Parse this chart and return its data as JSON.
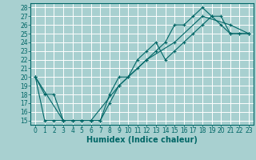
{
  "xlabel": "Humidex (Indice chaleur)",
  "bg_color": "#a8d0d0",
  "grid_color": "#ffffff",
  "line_color": "#006666",
  "xlim": [
    -0.5,
    23.5
  ],
  "ylim": [
    14.5,
    28.5
  ],
  "xticks": [
    0,
    1,
    2,
    3,
    4,
    5,
    6,
    7,
    8,
    9,
    10,
    11,
    12,
    13,
    14,
    15,
    16,
    17,
    18,
    19,
    20,
    21,
    22,
    23
  ],
  "yticks": [
    15,
    16,
    17,
    18,
    19,
    20,
    21,
    22,
    23,
    24,
    25,
    26,
    27,
    28
  ],
  "line1_x": [
    0,
    1,
    2,
    3,
    4,
    5,
    6,
    7,
    8,
    9,
    10,
    11,
    12,
    13,
    14,
    15,
    16,
    17,
    18,
    19,
    20,
    21,
    22,
    23
  ],
  "line1_y": [
    20,
    18,
    18,
    15,
    15,
    15,
    15,
    15,
    18,
    20,
    20,
    21,
    22,
    23,
    24,
    26,
    26,
    27,
    28,
    27,
    26,
    25,
    25,
    25
  ],
  "line2_x": [
    0,
    1,
    2,
    3,
    4,
    5,
    6,
    7,
    8,
    9,
    10,
    11,
    12,
    13,
    14,
    15,
    16,
    17,
    18,
    19,
    20,
    21,
    22,
    23
  ],
  "line2_y": [
    20,
    15,
    15,
    15,
    15,
    15,
    15,
    15,
    17,
    19,
    20,
    22,
    23,
    24,
    22,
    23,
    24,
    25,
    26,
    27,
    27,
    25,
    25,
    25
  ],
  "line3_x": [
    0,
    3,
    6,
    9,
    12,
    15,
    18,
    21,
    23
  ],
  "line3_y": [
    20,
    15,
    15,
    19,
    22,
    24,
    27,
    26,
    25
  ],
  "font_size_ticks": 5.5,
  "font_size_xlabel": 7.0
}
